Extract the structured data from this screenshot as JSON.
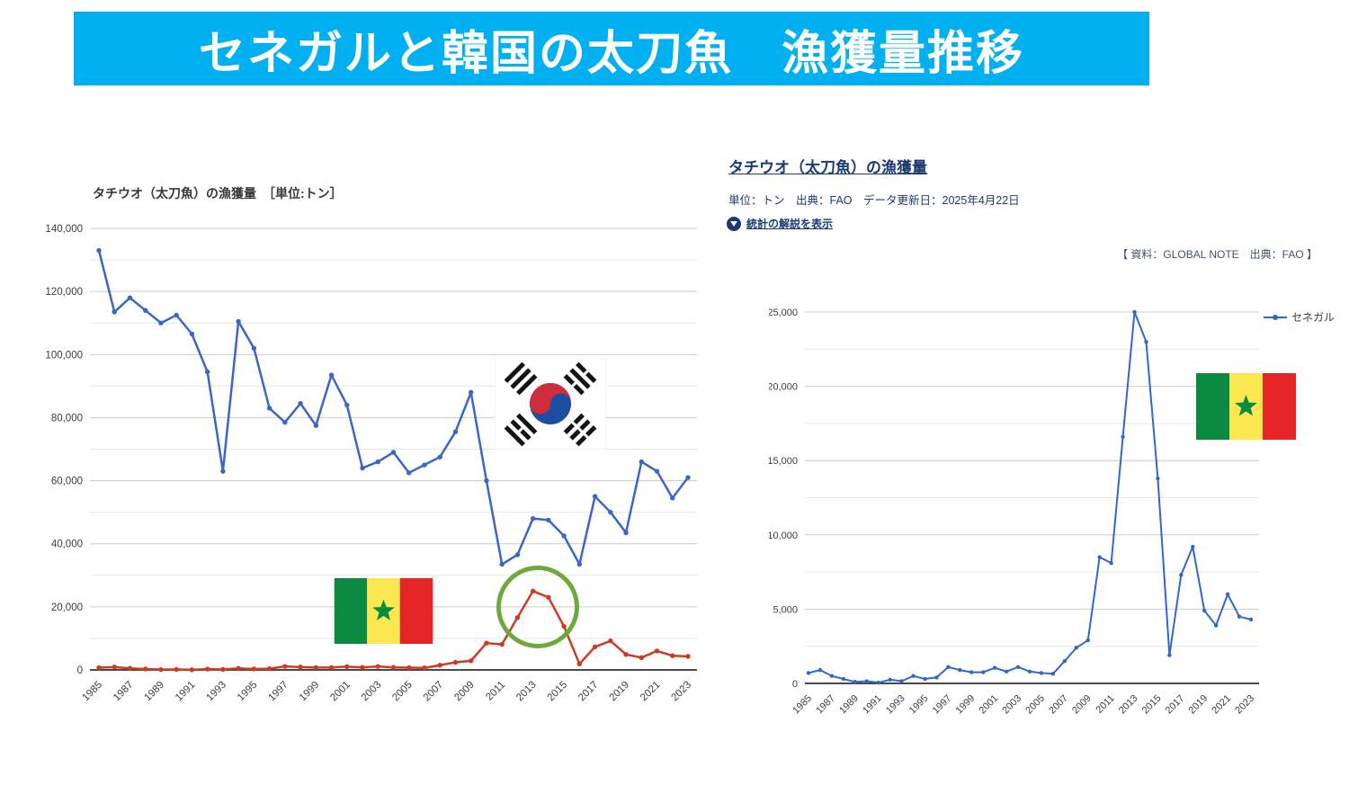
{
  "banner": {
    "title": "セネガルと韓国の太刀魚　漁獲量推移",
    "bg_color": "#00B0F0",
    "text_color": "#FFFFFF"
  },
  "left_chart": {
    "title": "タチウオ（太刀魚）の漁獲量　［単位:トン］"
  },
  "right_panel": {
    "title": "タチウオ（太刀魚）の漁獲量",
    "meta": "単位：トン　出典：FAO　データ更新日：2025年4月22日",
    "toggle_label": "統計の解説を表示",
    "attribution": "【 資料：GLOBAL NOTE　出典：FAO 】",
    "legend_label": "セネガル"
  },
  "colors": {
    "korea_line": "#3B66C6",
    "senegal_line_left": "#CE3B23",
    "senegal_line_right": "#3366CC",
    "highlight_circle": "#6FA83C",
    "banner_bg": "#00B0F0"
  },
  "chart_data": [
    {
      "type": "line",
      "title": "タチウオ（太刀魚）の漁獲量　［単位:トン］",
      "xlabel": "",
      "ylabel": "トン",
      "ylim": [
        0,
        140000
      ],
      "y_major": 20000,
      "y_minor": 10000,
      "x_label_step": 2,
      "grid": true,
      "legend_position": "none",
      "annotations": [
        "south-korea-flag",
        "senegal-flag",
        "green-circle-on-2013-senegal-peak"
      ],
      "x": [
        1985,
        1986,
        1987,
        1988,
        1989,
        1990,
        1991,
        1992,
        1993,
        1994,
        1995,
        1996,
        1997,
        1998,
        1999,
        2000,
        2001,
        2002,
        2003,
        2004,
        2005,
        2006,
        2007,
        2008,
        2009,
        2010,
        2011,
        2012,
        2013,
        2014,
        2015,
        2016,
        2017,
        2018,
        2019,
        2020,
        2021,
        2022,
        2023
      ],
      "series": [
        {
          "name": "韓国",
          "color": "#3B66C6",
          "values": [
            133000,
            113500,
            118000,
            114000,
            110000,
            112500,
            106500,
            94500,
            63000,
            110500,
            102000,
            83000,
            78500,
            84500,
            77500,
            93500,
            84000,
            64000,
            66000,
            69000,
            62500,
            65000,
            67500,
            75500,
            88000,
            60000,
            33500,
            36500,
            48000,
            47500,
            42500,
            33500,
            55000,
            50000,
            43500,
            66000,
            63000,
            54500,
            61000
          ]
        },
        {
          "name": "セネガル",
          "color": "#CE3B23",
          "values": [
            700,
            900,
            500,
            300,
            100,
            150,
            50,
            250,
            150,
            500,
            300,
            400,
            1100,
            900,
            750,
            750,
            1050,
            800,
            1100,
            800,
            700,
            650,
            1500,
            2400,
            2900,
            8500,
            8100,
            16600,
            25000,
            23000,
            13800,
            1900,
            7300,
            9200,
            4900,
            3900,
            6000,
            4500,
            4300
          ]
        }
      ]
    },
    {
      "type": "line",
      "title": "タチウオ（太刀魚）の漁獲量",
      "xlabel": "",
      "ylabel": "トン",
      "ylim": [
        0,
        25000
      ],
      "y_major": 5000,
      "y_minor": 2500,
      "x_label_step": 2,
      "grid": true,
      "legend_position": "right",
      "x": [
        1985,
        1986,
        1987,
        1988,
        1989,
        1990,
        1991,
        1992,
        1993,
        1994,
        1995,
        1996,
        1997,
        1998,
        1999,
        2000,
        2001,
        2002,
        2003,
        2004,
        2005,
        2006,
        2007,
        2008,
        2009,
        2010,
        2011,
        2012,
        2013,
        2014,
        2015,
        2016,
        2017,
        2018,
        2019,
        2020,
        2021,
        2022,
        2023
      ],
      "series": [
        {
          "name": "セネガル",
          "color": "#3366CC",
          "values": [
            700,
            900,
            500,
            300,
            100,
            150,
            50,
            250,
            150,
            500,
            300,
            400,
            1100,
            900,
            750,
            750,
            1050,
            800,
            1100,
            800,
            700,
            650,
            1500,
            2400,
            2900,
            8500,
            8100,
            16600,
            25000,
            23000,
            13800,
            1900,
            7300,
            9200,
            4900,
            3900,
            6000,
            4500,
            4300
          ]
        }
      ]
    }
  ]
}
